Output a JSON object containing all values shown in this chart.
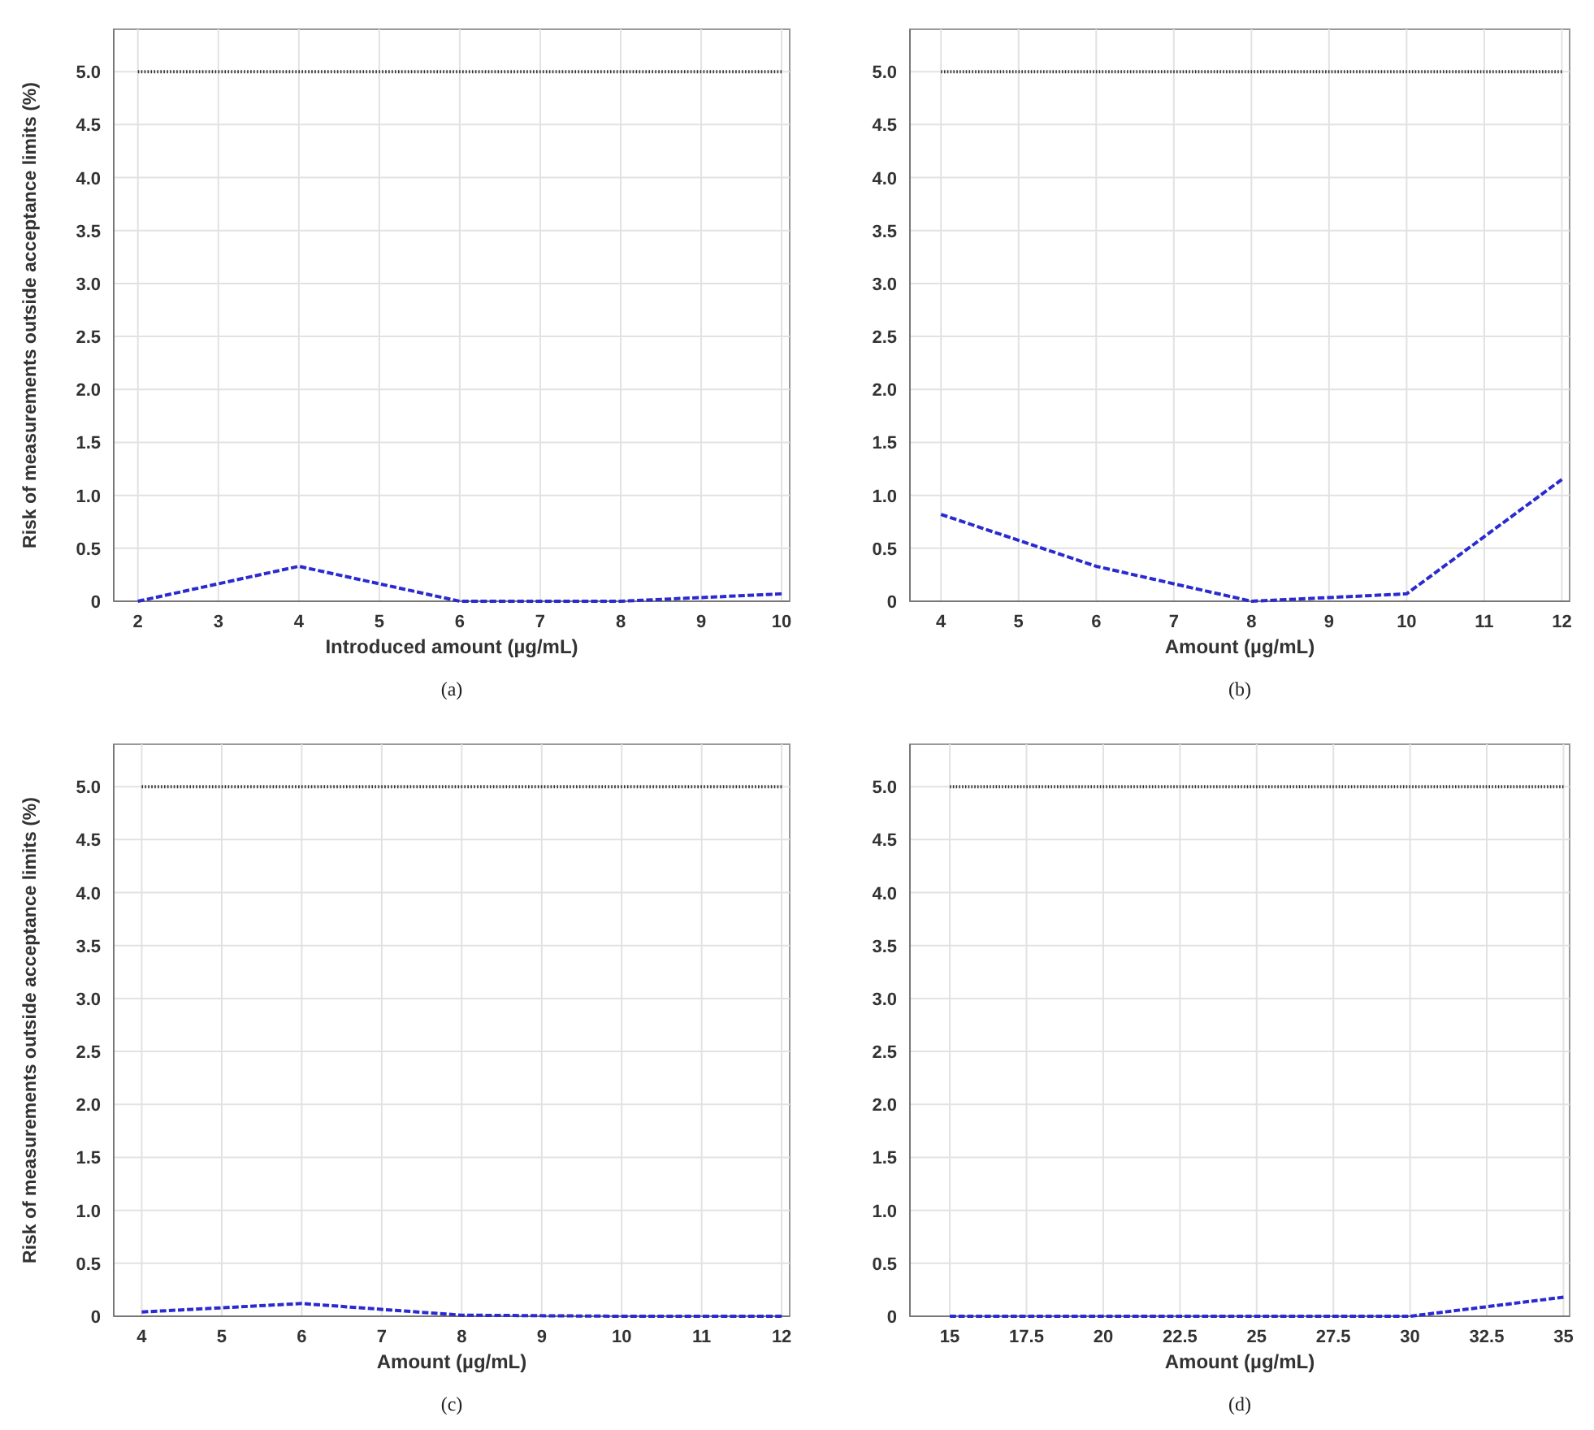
{
  "chart_data": [
    {
      "type": "line",
      "ylabel": "Risk of measurements outside acceptance limits (%)",
      "xlabel": "Introduced amount (µg/mL)",
      "annotations": [
        "(a)"
      ],
      "xlim": [
        1.7,
        10.1
      ],
      "xticks": [
        2,
        3,
        4,
        5,
        6,
        7,
        8,
        9,
        10
      ],
      "ylim": [
        0,
        5.4
      ],
      "yticks": [
        0,
        0.5,
        {
          "value": 1,
          "label": "1.0"
        },
        1.5,
        {
          "value": 2,
          "label": "2.0"
        },
        2.5,
        {
          "value": 3,
          "label": "3.0"
        },
        3.5,
        {
          "value": 4,
          "label": "4.0"
        },
        4.5,
        {
          "value": 5,
          "label": "5.0"
        }
      ],
      "grid": true,
      "series": [
        {
          "color": "#2a2ad0",
          "line_style": "dashed",
          "x": [
            2,
            4,
            6,
            8,
            10
          ],
          "values": [
            0,
            0.33,
            0,
            0,
            0.07
          ]
        },
        {
          "color": "#333333",
          "line_style": "dotted",
          "x": [
            2,
            10
          ],
          "values": [
            5,
            5
          ]
        }
      ]
    },
    {
      "type": "line",
      "xlabel": "Amount (µg/mL)",
      "annotations": [
        "(b)"
      ],
      "xlim": [
        3.6,
        12.1
      ],
      "xticks": [
        4,
        5,
        6,
        7,
        8,
        9,
        10,
        11,
        12
      ],
      "ylim": [
        0,
        5.4
      ],
      "yticks": [
        0,
        0.5,
        {
          "value": 1,
          "label": "1.0"
        },
        1.5,
        {
          "value": 2,
          "label": "2.0"
        },
        2.5,
        {
          "value": 3,
          "label": "3.0"
        },
        3.5,
        {
          "value": 4,
          "label": "4.0"
        },
        4.5,
        {
          "value": 5,
          "label": "5.0"
        }
      ],
      "grid": true,
      "series": [
        {
          "color": "#2a2ad0",
          "line_style": "dashed",
          "x": [
            4,
            6,
            8,
            10,
            12
          ],
          "values": [
            0.82,
            0.33,
            0,
            0.07,
            1.15
          ]
        },
        {
          "color": "#333333",
          "line_style": "dotted",
          "x": [
            4,
            12
          ],
          "values": [
            5,
            5
          ]
        }
      ]
    },
    {
      "type": "line",
      "ylabel": "Risk of measurements outside acceptance limits (%)",
      "xlabel": "Amount (µg/mL)",
      "annotations": [
        "(c)"
      ],
      "xlim": [
        3.65,
        12.1
      ],
      "xticks": [
        4,
        5,
        6,
        7,
        8,
        9,
        10,
        11,
        12
      ],
      "ylim": [
        0,
        5.4
      ],
      "yticks": [
        0,
        0.5,
        {
          "value": 1,
          "label": "1.0"
        },
        1.5,
        {
          "value": 2,
          "label": "2.0"
        },
        2.5,
        {
          "value": 3,
          "label": "3.0"
        },
        3.5,
        {
          "value": 4,
          "label": "4.0"
        },
        4.5,
        {
          "value": 5,
          "label": "5.0"
        }
      ],
      "grid": true,
      "series": [
        {
          "color": "#2a2ad0",
          "line_style": "dashed",
          "x": [
            4,
            6,
            8,
            10,
            12
          ],
          "values": [
            0.04,
            0.12,
            0.01,
            0,
            0
          ]
        },
        {
          "color": "#333333",
          "line_style": "dotted",
          "x": [
            4,
            12
          ],
          "values": [
            5,
            5
          ]
        }
      ]
    },
    {
      "type": "line",
      "xlabel": "Amount (µg/mL)",
      "annotations": [
        "(d)"
      ],
      "xlim": [
        13.7,
        35.2
      ],
      "xticks": [
        15,
        17.5,
        20,
        22.5,
        25,
        27.5,
        30,
        32.5,
        35
      ],
      "ylim": [
        0,
        5.4
      ],
      "yticks": [
        0,
        0.5,
        {
          "value": 1,
          "label": "1.0"
        },
        1.5,
        {
          "value": 2,
          "label": "2.0"
        },
        2.5,
        {
          "value": 3,
          "label": "3.0"
        },
        3.5,
        {
          "value": 4,
          "label": "4.0"
        },
        4.5,
        {
          "value": 5,
          "label": "5.0"
        }
      ],
      "grid": true,
      "series": [
        {
          "color": "#2a2ad0",
          "line_style": "dashed",
          "x": [
            15,
            20,
            25,
            30,
            35
          ],
          "values": [
            0,
            0,
            0,
            0,
            0.18
          ]
        },
        {
          "color": "#333333",
          "line_style": "dotted",
          "x": [
            15,
            35
          ],
          "values": [
            5,
            5
          ]
        }
      ]
    }
  ]
}
